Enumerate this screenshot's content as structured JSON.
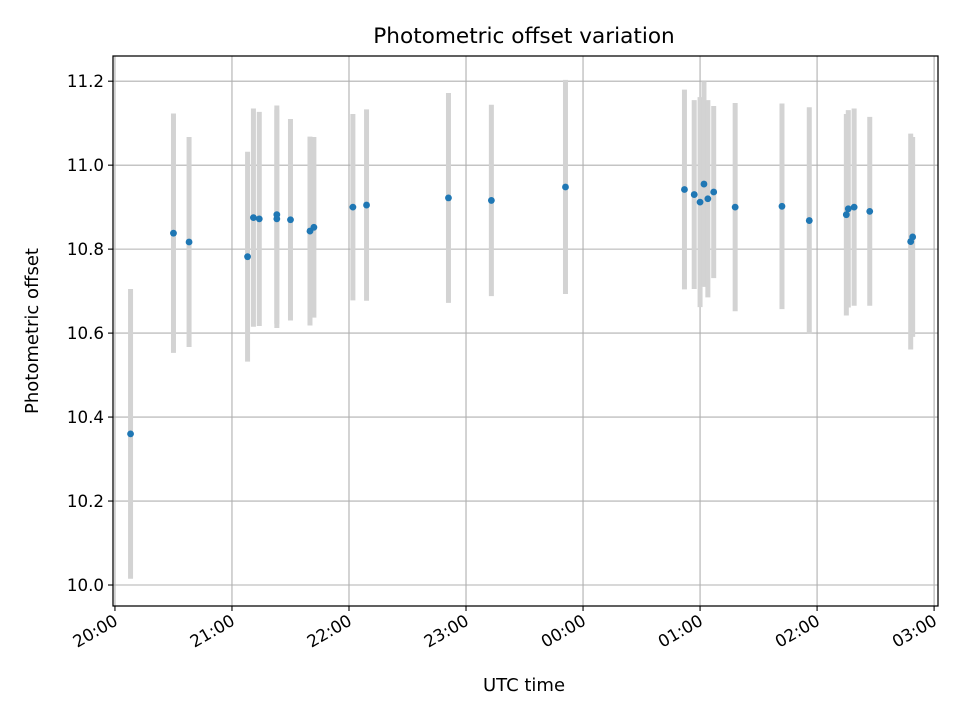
{
  "chart_data": {
    "type": "scatter",
    "title": "Photometric offset variation",
    "xlabel": "UTC time",
    "ylabel": "Photometric offset",
    "x_unit": "UTC",
    "xlim": [
      "19:59",
      "03:02"
    ],
    "ylim": [
      9.95,
      11.26
    ],
    "x_ticks": [
      "20:00",
      "21:00",
      "22:00",
      "23:00",
      "00:00",
      "01:00",
      "02:00",
      "03:00"
    ],
    "y_ticks": [
      10.0,
      10.2,
      10.4,
      10.6,
      10.8,
      11.0,
      11.2
    ],
    "y_tick_labels": [
      "10.0",
      "10.2",
      "10.4",
      "10.6",
      "10.8",
      "11.0",
      "11.2"
    ],
    "grid": true,
    "x_tick_rotation": "30",
    "colors": {
      "points": "#1f77b4",
      "errorbars": "#d3d3d3",
      "grid": "#b0b0b0"
    },
    "series": [
      {
        "points": [
          {
            "x": "20:08",
            "y": 10.36,
            "err": 0.345
          },
          {
            "x": "20:30",
            "y": 10.838,
            "err": 0.285
          },
          {
            "x": "20:38",
            "y": 10.817,
            "err": 0.25
          },
          {
            "x": "21:08",
            "y": 10.782,
            "err": 0.25
          },
          {
            "x": "21:11",
            "y": 10.875,
            "err": 0.26
          },
          {
            "x": "21:14",
            "y": 10.872,
            "err": 0.255
          },
          {
            "x": "21:23",
            "y": 10.872,
            "err": 0.26
          },
          {
            "x": "21:23",
            "y": 10.882,
            "err": 0.26
          },
          {
            "x": "21:30",
            "y": 10.87,
            "err": 0.24
          },
          {
            "x": "21:40",
            "y": 10.843,
            "err": 0.225
          },
          {
            "x": "21:42",
            "y": 10.852,
            "err": 0.215
          },
          {
            "x": "22:02",
            "y": 10.9,
            "err": 0.222
          },
          {
            "x": "22:09",
            "y": 10.905,
            "err": 0.228
          },
          {
            "x": "22:51",
            "y": 10.922,
            "err": 0.25
          },
          {
            "x": "23:13",
            "y": 10.916,
            "err": 0.228
          },
          {
            "x": "23:51",
            "y": 10.948,
            "err": 0.255
          },
          {
            "x": "00:52",
            "y": 10.942,
            "err": 0.238
          },
          {
            "x": "00:57",
            "y": 10.93,
            "err": 0.225
          },
          {
            "x": "01:00",
            "y": 10.912,
            "err": 0.25
          },
          {
            "x": "01:02",
            "y": 10.955,
            "err": 0.245
          },
          {
            "x": "01:04",
            "y": 10.92,
            "err": 0.235
          },
          {
            "x": "01:07",
            "y": 10.936,
            "err": 0.205
          },
          {
            "x": "01:18",
            "y": 10.9,
            "err": 0.248
          },
          {
            "x": "01:42",
            "y": 10.902,
            "err": 0.245
          },
          {
            "x": "01:56",
            "y": 10.868,
            "err": 0.27
          },
          {
            "x": "02:15",
            "y": 10.882,
            "err": 0.24
          },
          {
            "x": "02:16",
            "y": 10.896,
            "err": 0.235
          },
          {
            "x": "02:19",
            "y": 10.9,
            "err": 0.235
          },
          {
            "x": "02:27",
            "y": 10.89,
            "err": 0.225
          },
          {
            "x": "02:48",
            "y": 10.818,
            "err": 0.257
          },
          {
            "x": "02:49",
            "y": 10.829,
            "err": 0.238
          }
        ]
      }
    ]
  }
}
